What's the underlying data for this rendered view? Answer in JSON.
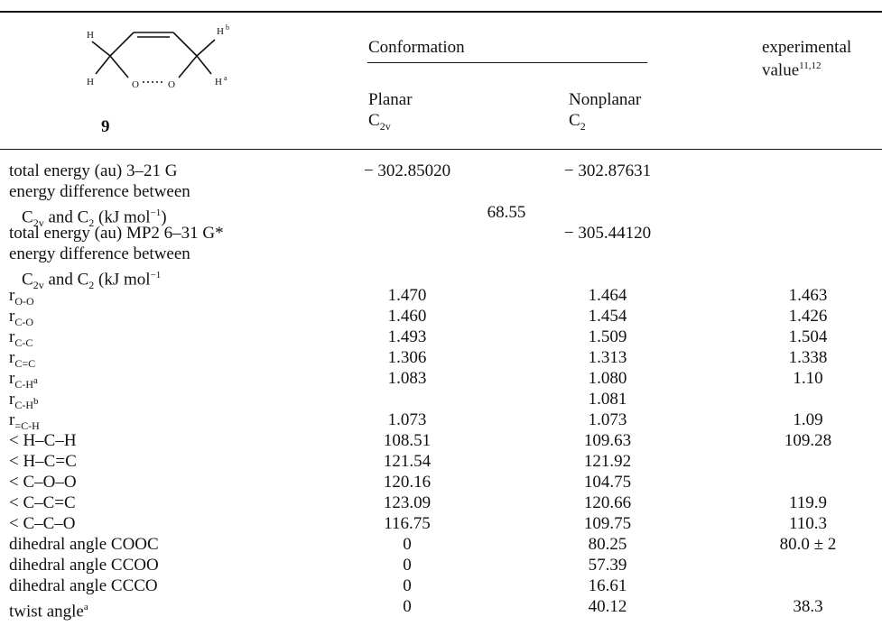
{
  "caption": "(partially visible table caption)",
  "header": {
    "compound_number": "9",
    "conformation": "Conformation",
    "planar": "Planar",
    "planar_sym": "C",
    "planar_sym_sub": "2v",
    "nonplanar": "Nonplanar",
    "nonplanar_sym": "C",
    "nonplanar_sym_sub": "2",
    "experimental": "experimental",
    "value": "value",
    "value_sup": "11,12"
  },
  "molecule": {
    "h_top_left": "H",
    "h_top_right": "H",
    "h_top_right_sup": "b",
    "h_bot_left": "H",
    "h_bot_right": "H",
    "h_bot_right_sup": "a",
    "o_left": "O",
    "o_right": "O"
  },
  "energy": {
    "total_321": "total energy (au) 3–21 G",
    "total_321_planar": "− 302.85020",
    "total_321_nonplanar": "− 302.87631",
    "diff1_line1": "energy difference between",
    "diff1_c2v": "C",
    "diff1_c2v_sub": "2v",
    "diff1_and": " and C",
    "diff1_c2_sub": "2",
    "diff1_unit": " (kJ mol",
    "diff1_unit_sup": "−1",
    "diff1_unit_close": ")",
    "diff1_value": "68.55",
    "total_mp2": "total energy (au) MP2 6–31 G*",
    "total_mp2_nonplanar": "− 305.44120",
    "diff2_line1": "energy difference between",
    "diff2_c2v": "C",
    "diff2_c2v_sub": "2v",
    "diff2_and": " and C",
    "diff2_c2_sub": "2",
    "diff2_unit": " (kJ mol",
    "diff2_unit_sup": "−1"
  },
  "rows": [
    {
      "r": "r",
      "sub": "O-O",
      "planar": "1.470",
      "nonplanar": "1.464",
      "exp": "1.463"
    },
    {
      "r": "r",
      "sub": "C-O",
      "planar": "1.460",
      "nonplanar": "1.454",
      "exp": "1.426"
    },
    {
      "r": "r",
      "sub": "C-C",
      "planar": "1.493",
      "nonplanar": "1.509",
      "exp": "1.504"
    },
    {
      "r": "r",
      "sub": "C=C",
      "planar": "1.306",
      "nonplanar": "1.313",
      "exp": "1.338"
    },
    {
      "r": "r",
      "sub": "C-H",
      "sub_sup": "a",
      "planar": "1.083",
      "nonplanar": "1.080",
      "exp": "1.10"
    },
    {
      "r": "r",
      "sub": "C-H",
      "sub_sup": "b",
      "planar": "",
      "nonplanar": "1.081",
      "exp": ""
    },
    {
      "r": "r",
      "sub": "=C-H",
      "planar": "1.073",
      "nonplanar": "1.073",
      "exp": "1.09"
    }
  ],
  "angles": [
    {
      "label": "< H–C–H",
      "planar": "108.51",
      "nonplanar": "109.63",
      "exp": "109.28"
    },
    {
      "label": "< H–C=C",
      "planar": "121.54",
      "nonplanar": "121.92",
      "exp": ""
    },
    {
      "label": "< C–O–O",
      "planar": "120.16",
      "nonplanar": "104.75",
      "exp": ""
    },
    {
      "label": "< C–C=C",
      "planar": "123.09",
      "nonplanar": "120.66",
      "exp": "119.9"
    },
    {
      "label": "< C–C–O",
      "planar": "116.75",
      "nonplanar": "109.75",
      "exp": "110.3"
    },
    {
      "label": "dihedral angle COOC",
      "planar": "0",
      "nonplanar": "80.25",
      "exp": "80.0 ± 2"
    },
    {
      "label": "dihedral angle CCOO",
      "planar": "0",
      "nonplanar": "57.39",
      "exp": ""
    },
    {
      "label": "dihedral angle CCCO",
      "planar": "0",
      "nonplanar": "16.61",
      "exp": ""
    },
    {
      "label": "twist angle",
      "label_sup": "a",
      "planar": "0",
      "nonplanar": "40.12",
      "exp": "38.3"
    }
  ]
}
